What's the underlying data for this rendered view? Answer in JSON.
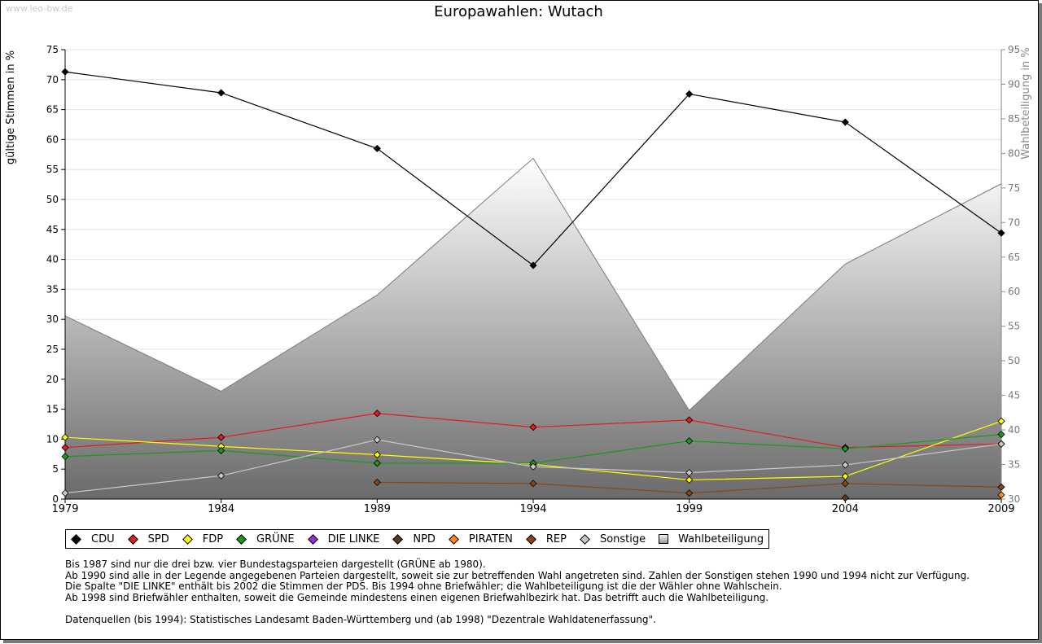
{
  "watermark": "www.leo-bw.de",
  "chart_data": {
    "type": "line",
    "title": "Europawahlen: Wutach",
    "ylabel": "gültige Stimmen in %",
    "y2label": "Wahlbeteiligung in %",
    "ylim": [
      0,
      75
    ],
    "y2lim": [
      30,
      95
    ],
    "yticks": [
      "0",
      "5",
      "10",
      "15",
      "20",
      "25",
      "30",
      "35",
      "40",
      "45",
      "50",
      "55",
      "60",
      "65",
      "70",
      "75"
    ],
    "y2ticks": [
      "30",
      "35",
      "40",
      "45",
      "50",
      "55",
      "60",
      "65",
      "70",
      "75",
      "80",
      "85",
      "90",
      "95"
    ],
    "categories": [
      "1979",
      "1984",
      "1989",
      "1994",
      "1999",
      "2004",
      "2009"
    ],
    "turnout": {
      "name": "Wahlbeteiligung",
      "values": [
        56.5,
        45.6,
        59.5,
        79.3,
        42.8,
        64.0,
        75.6
      ]
    },
    "series": [
      {
        "name": "CDU",
        "color": "#000000",
        "values": [
          71.3,
          67.8,
          58.5,
          39.0,
          67.6,
          62.9,
          44.4
        ]
      },
      {
        "name": "SPD",
        "color": "#e41a1c",
        "values": [
          8.6,
          10.3,
          14.3,
          12.0,
          13.2,
          8.6,
          9.2
        ]
      },
      {
        "name": "FDP",
        "color": "#ffff00",
        "values": [
          10.3,
          8.8,
          7.4,
          5.8,
          3.2,
          3.8,
          13.0
        ]
      },
      {
        "name": "GRÜNE",
        "color": "#1a9a1a",
        "values": [
          7.1,
          8.1,
          6.0,
          6.0,
          9.7,
          8.4,
          10.8
        ]
      },
      {
        "name": "DIE LINKE",
        "color": "#9a2fd2",
        "values": [
          null,
          null,
          null,
          null,
          null,
          null,
          null
        ]
      },
      {
        "name": "NPD",
        "color": "#5a3a22",
        "values": [
          null,
          null,
          null,
          null,
          null,
          0.2,
          null
        ]
      },
      {
        "name": "PIRATEN",
        "color": "#ff8c1a",
        "values": [
          null,
          null,
          null,
          null,
          null,
          null,
          0.7
        ]
      },
      {
        "name": "REP",
        "color": "#8b4513",
        "values": [
          null,
          null,
          2.8,
          2.6,
          1.0,
          2.6,
          2.0
        ]
      },
      {
        "name": "Sonstige",
        "color": "#c8c8c8",
        "values": [
          1.0,
          3.9,
          9.9,
          5.4,
          4.4,
          5.7,
          9.2
        ]
      }
    ],
    "legend": [
      {
        "label": "CDU",
        "color": "#000000",
        "kind": "marker"
      },
      {
        "label": "SPD",
        "color": "#e41a1c",
        "kind": "marker"
      },
      {
        "label": "FDP",
        "color": "#ffff00",
        "kind": "marker"
      },
      {
        "label": "GRÜNE",
        "color": "#1a9a1a",
        "kind": "marker"
      },
      {
        "label": "DIE LINKE",
        "color": "#9a2fd2",
        "kind": "marker"
      },
      {
        "label": "NPD",
        "color": "#5a3a22",
        "kind": "marker"
      },
      {
        "label": "PIRATEN",
        "color": "#ff8c1a",
        "kind": "marker"
      },
      {
        "label": "REP",
        "color": "#8b4513",
        "kind": "marker"
      },
      {
        "label": "Sonstige",
        "color": "#c8c8c8",
        "kind": "marker"
      },
      {
        "label": "Wahlbeteiligung",
        "color": "#b0b0b0",
        "kind": "area"
      }
    ]
  },
  "notes": [
    "Bis 1987 sind nur die drei bzw. vier Bundestagsparteien dargestellt (GRÜNE ab 1980).",
    "Ab 1990 sind alle in der Legende angegebenen Parteien dargestellt, soweit sie zur betreffenden Wahl angetreten sind. Zahlen der Sonstigen stehen 1990 und 1994 nicht zur Verfügung.",
    "Die Spalte \"DIE LINKE\" enthält bis 2002 die Stimmen der PDS. Bis 1994 ohne Briefwähler; die Wahlbeteiligung ist die der Wähler ohne Wahlschein.",
    "Ab 1998 sind Briefwähler enthalten, soweit die Gemeinde mindestens einen eigenen Briefwahlbezirk hat. Das betrifft auch die Wahlbeteiligung."
  ],
  "source": "Datenquellen (bis 1994): Statistisches Landesamt Baden-Württemberg und (ab 1998) \"Dezentrale Wahldatenerfassung\"."
}
